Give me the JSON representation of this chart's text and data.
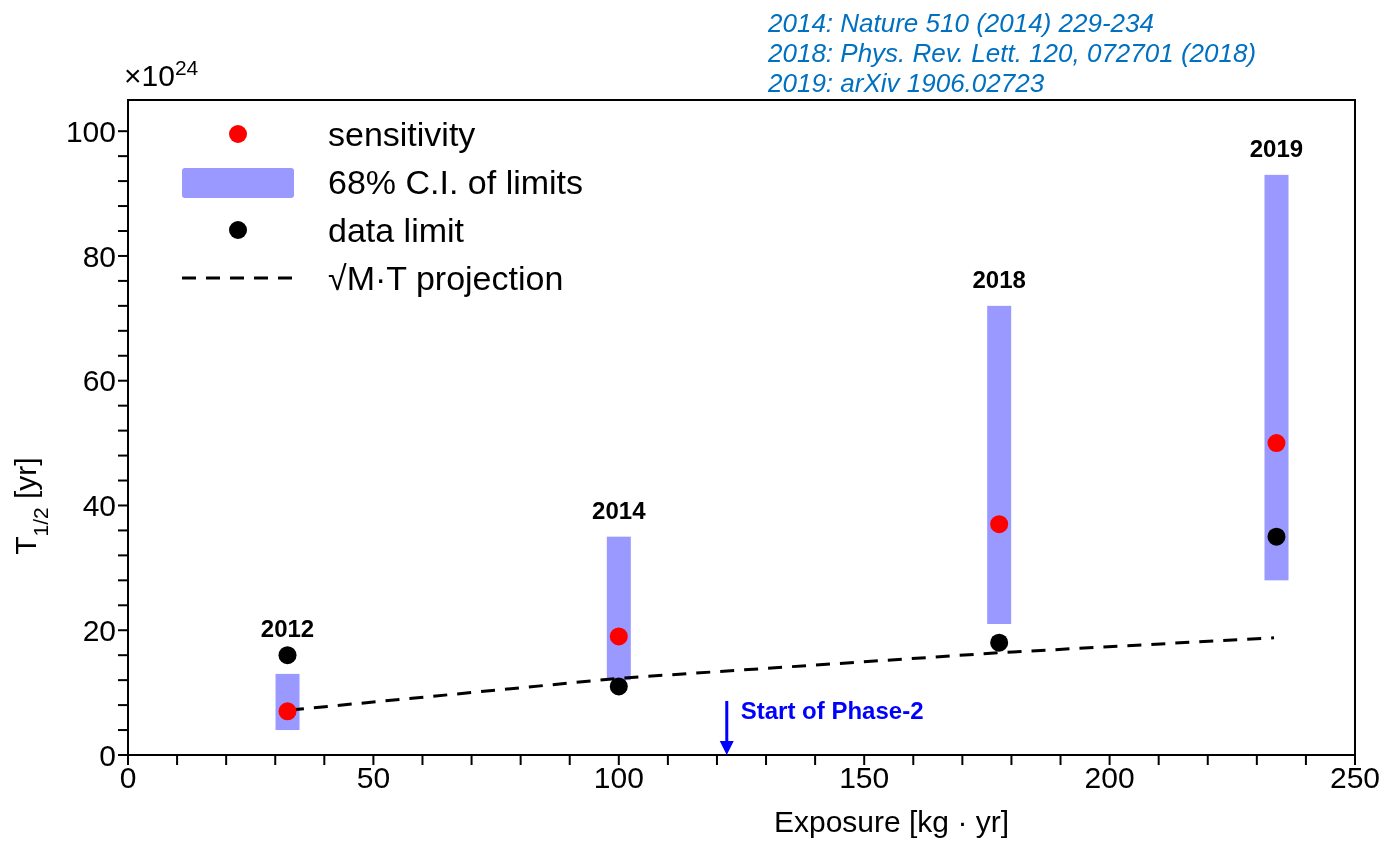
{
  "chart_data": {
    "type": "scatter",
    "xlabel": "Exposure [kg · yr]",
    "ylabel": "T$_{1/2}$ [yr]",
    "xlim": [
      0,
      250
    ],
    "ylim": [
      0,
      105
    ],
    "xticks": [
      0,
      {
        "value": 10,
        "label": null
      },
      {
        "value": 20,
        "label": null
      },
      {
        "value": 30,
        "label": null
      },
      {
        "value": 40,
        "label": null
      },
      50,
      {
        "value": 60,
        "label": null
      },
      {
        "value": 70,
        "label": null
      },
      {
        "value": 80,
        "label": null
      },
      {
        "value": 90,
        "label": null
      },
      100,
      {
        "value": 110,
        "label": null
      },
      {
        "value": 120,
        "label": null
      },
      {
        "value": 130,
        "label": null
      },
      {
        "value": 140,
        "label": null
      },
      150,
      {
        "value": 160,
        "label": null
      },
      {
        "value": 170,
        "label": null
      },
      {
        "value": 180,
        "label": null
      },
      {
        "value": 190,
        "label": null
      },
      200,
      {
        "value": 210,
        "label": null
      },
      {
        "value": 220,
        "label": null
      },
      {
        "value": 230,
        "label": null
      },
      {
        "value": 240,
        "label": null
      },
      250
    ],
    "yticks": [
      0,
      {
        "value": 4,
        "label": null
      },
      {
        "value": 8,
        "label": null
      },
      {
        "value": 12,
        "label": null
      },
      {
        "value": 16,
        "label": null
      },
      20,
      {
        "value": 24,
        "label": null
      },
      {
        "value": 28,
        "label": null
      },
      {
        "value": 32,
        "label": null
      },
      {
        "value": 36,
        "label": null
      },
      40,
      {
        "value": 44,
        "label": null
      },
      {
        "value": 48,
        "label": null
      },
      {
        "value": 52,
        "label": null
      },
      {
        "value": 56,
        "label": null
      },
      60,
      {
        "value": 64,
        "label": null
      },
      {
        "value": 68,
        "label": null
      },
      {
        "value": 72,
        "label": null
      },
      {
        "value": 76,
        "label": null
      },
      80,
      {
        "value": 84,
        "label": null
      },
      {
        "value": 88,
        "label": null
      },
      {
        "value": 92,
        "label": null
      },
      {
        "value": 96,
        "label": null
      },
      100
    ],
    "series": [
      {
        "name": "sensitivity",
        "color": "#ff0000",
        "marker": "circle",
        "x": [
          32.5,
          100,
          177.5,
          234
        ],
        "values": [
          7,
          19,
          37,
          50
        ]
      },
      {
        "name": "68% C.I. of limits",
        "type": "bar",
        "color": "#9999ff",
        "x": [
          32.5,
          100,
          177.5,
          234
        ],
        "base": [
          4,
          12,
          21,
          28
        ],
        "values": [
          9,
          23,
          51,
          65
        ]
      },
      {
        "name": "data limit",
        "color": "#000000",
        "marker": "circle",
        "x": [
          32.5,
          100,
          177.5,
          234
        ],
        "values": [
          16,
          11,
          18,
          35
        ]
      },
      {
        "name": "√M·T projection",
        "type": "line",
        "color": "#000000",
        "line_style": "dashed",
        "marker": "none",
        "x": [
          33,
          100,
          177.5,
          233.5
        ],
        "values": [
          7.2,
          12.3,
          16.4,
          18.8
        ]
      }
    ],
    "legend": "top left",
    "annotations": [
      "×10$^{24}$",
      "2014: Nature 510 (2014) 229-234",
      "2018: Phys. Rev. Lett. 120, 072701 (2018)",
      "2019: arXiv 1906.02723",
      {
        "text": "2012",
        "x": 32.5,
        "y": 16
      },
      {
        "text": "2014",
        "x": 100,
        "y": 35
      },
      {
        "text": "2018",
        "x": 177.5,
        "y": 72
      },
      {
        "text": "2019",
        "x": 234,
        "y": 93
      }
    ],
    "ref_lines": [
      {
        "axis": "x",
        "value": 122,
        "label": "Start of Phase-2",
        "color": "#0000ff"
      }
    ]
  }
}
